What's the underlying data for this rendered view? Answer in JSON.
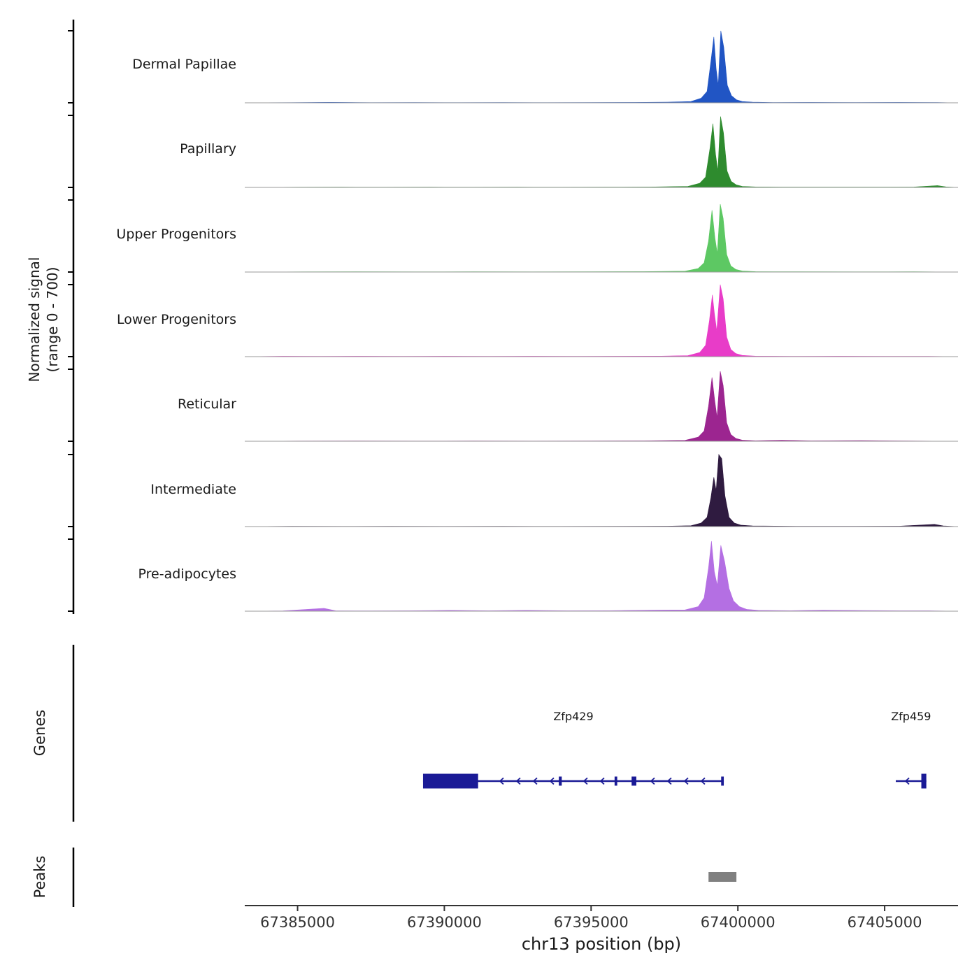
{
  "chart_data": {
    "type": "area",
    "title": "",
    "xlabel": "chr13 position (bp)",
    "ylabel_line1": "Normalized signal",
    "ylabel_line2": "(range 0 - 700)",
    "x_domain": [
      67383200,
      67407500
    ],
    "y_range_per_track": [
      0,
      700
    ],
    "x_ticks": [
      67385000,
      67390000,
      67395000,
      67400000,
      67405000
    ],
    "grid": false,
    "legend": "none",
    "tracks": [
      {
        "name": "Dermal Papillae",
        "color": "#2155c4",
        "profile": [
          [
            67383200,
            0
          ],
          [
            67384800,
            2
          ],
          [
            67386100,
            5
          ],
          [
            67387500,
            2
          ],
          [
            67389000,
            3
          ],
          [
            67390500,
            2
          ],
          [
            67392000,
            3
          ],
          [
            67393500,
            2
          ],
          [
            67395000,
            3
          ],
          [
            67396500,
            4
          ],
          [
            67397600,
            6
          ],
          [
            67398400,
            12
          ],
          [
            67398750,
            45
          ],
          [
            67398950,
            110
          ],
          [
            67399080,
            400
          ],
          [
            67399180,
            640
          ],
          [
            67399260,
            330
          ],
          [
            67399330,
            170
          ],
          [
            67399420,
            700
          ],
          [
            67399520,
            540
          ],
          [
            67399640,
            170
          ],
          [
            67399780,
            70
          ],
          [
            67399950,
            30
          ],
          [
            67400150,
            12
          ],
          [
            67400500,
            6
          ],
          [
            67401200,
            3
          ],
          [
            67402500,
            4
          ],
          [
            67404000,
            3
          ],
          [
            67405500,
            4
          ],
          [
            67406800,
            3
          ],
          [
            67407500,
            0
          ]
        ]
      },
      {
        "name": "Papillary",
        "color": "#2e8b2e",
        "profile": [
          [
            67383200,
            0
          ],
          [
            67385000,
            2
          ],
          [
            67386500,
            3
          ],
          [
            67388000,
            2
          ],
          [
            67389500,
            3
          ],
          [
            67391000,
            2
          ],
          [
            67392500,
            3
          ],
          [
            67394000,
            2
          ],
          [
            67395500,
            3
          ],
          [
            67397000,
            4
          ],
          [
            67398300,
            10
          ],
          [
            67398700,
            40
          ],
          [
            67398900,
            100
          ],
          [
            67399050,
            380
          ],
          [
            67399150,
            620
          ],
          [
            67399240,
            320
          ],
          [
            67399320,
            160
          ],
          [
            67399410,
            690
          ],
          [
            67399510,
            530
          ],
          [
            67399630,
            160
          ],
          [
            67399770,
            60
          ],
          [
            67399940,
            25
          ],
          [
            67400150,
            10
          ],
          [
            67400600,
            5
          ],
          [
            67401500,
            3
          ],
          [
            67403000,
            3
          ],
          [
            67404500,
            3
          ],
          [
            67406000,
            4
          ],
          [
            67406800,
            18
          ],
          [
            67407100,
            5
          ],
          [
            67407500,
            0
          ]
        ]
      },
      {
        "name": "Upper Progenitors",
        "color": "#5dc863",
        "profile": [
          [
            67383200,
            0
          ],
          [
            67385200,
            2
          ],
          [
            67387000,
            3
          ],
          [
            67389000,
            2
          ],
          [
            67391000,
            3
          ],
          [
            67393000,
            2
          ],
          [
            67395000,
            3
          ],
          [
            67396800,
            4
          ],
          [
            67398200,
            8
          ],
          [
            67398650,
            35
          ],
          [
            67398850,
            90
          ],
          [
            67399000,
            300
          ],
          [
            67399120,
            600
          ],
          [
            67399220,
            330
          ],
          [
            67399300,
            180
          ],
          [
            67399400,
            660
          ],
          [
            67399500,
            520
          ],
          [
            67399620,
            170
          ],
          [
            67399760,
            60
          ],
          [
            67399930,
            25
          ],
          [
            67400150,
            10
          ],
          [
            67400600,
            4
          ],
          [
            67402000,
            3
          ],
          [
            67404000,
            2
          ],
          [
            67406000,
            3
          ],
          [
            67407500,
            0
          ]
        ]
      },
      {
        "name": "Lower Progenitors",
        "color": "#e83cc8",
        "profile": [
          [
            67383200,
            0
          ],
          [
            67384500,
            4
          ],
          [
            67385800,
            3
          ],
          [
            67387200,
            4
          ],
          [
            67388600,
            3
          ],
          [
            67390000,
            4
          ],
          [
            67391500,
            3
          ],
          [
            67393000,
            4
          ],
          [
            67394500,
            3
          ],
          [
            67396000,
            4
          ],
          [
            67397400,
            5
          ],
          [
            67398300,
            10
          ],
          [
            67398700,
            40
          ],
          [
            67398900,
            110
          ],
          [
            67399030,
            350
          ],
          [
            67399130,
            600
          ],
          [
            67399200,
            420
          ],
          [
            67399280,
            250
          ],
          [
            67399400,
            700
          ],
          [
            67399500,
            560
          ],
          [
            67399620,
            190
          ],
          [
            67399760,
            70
          ],
          [
            67399930,
            30
          ],
          [
            67400150,
            12
          ],
          [
            67400600,
            5
          ],
          [
            67401800,
            3
          ],
          [
            67403500,
            4
          ],
          [
            67405000,
            3
          ],
          [
            67406500,
            3
          ],
          [
            67407500,
            0
          ]
        ]
      },
      {
        "name": "Reticular",
        "color": "#9c2590",
        "profile": [
          [
            67383200,
            0
          ],
          [
            67385000,
            2
          ],
          [
            67387000,
            3
          ],
          [
            67389000,
            2
          ],
          [
            67391000,
            3
          ],
          [
            67393000,
            2
          ],
          [
            67395000,
            3
          ],
          [
            67396800,
            4
          ],
          [
            67398200,
            9
          ],
          [
            67398650,
            40
          ],
          [
            67398850,
            100
          ],
          [
            67399000,
            340
          ],
          [
            67399120,
            620
          ],
          [
            67399210,
            400
          ],
          [
            67399290,
            230
          ],
          [
            67399400,
            680
          ],
          [
            67399500,
            540
          ],
          [
            67399620,
            180
          ],
          [
            67399760,
            65
          ],
          [
            67399930,
            28
          ],
          [
            67400150,
            11
          ],
          [
            67400600,
            5
          ],
          [
            67401500,
            10
          ],
          [
            67402500,
            4
          ],
          [
            67404200,
            6
          ],
          [
            67405800,
            3
          ],
          [
            67407500,
            0
          ]
        ]
      },
      {
        "name": "Intermediate",
        "color": "#2f1b40",
        "profile": [
          [
            67383200,
            0
          ],
          [
            67384800,
            3
          ],
          [
            67386500,
            2
          ],
          [
            67388200,
            3
          ],
          [
            67390000,
            2
          ],
          [
            67392000,
            3
          ],
          [
            67394000,
            2
          ],
          [
            67396000,
            3
          ],
          [
            67397600,
            4
          ],
          [
            67398400,
            8
          ],
          [
            67398750,
            35
          ],
          [
            67398950,
            90
          ],
          [
            67399080,
            280
          ],
          [
            67399180,
            480
          ],
          [
            67399260,
            350
          ],
          [
            67399350,
            700
          ],
          [
            67399450,
            660
          ],
          [
            67399560,
            300
          ],
          [
            67399700,
            90
          ],
          [
            67399880,
            35
          ],
          [
            67400100,
            14
          ],
          [
            67400500,
            6
          ],
          [
            67402000,
            3
          ],
          [
            67404000,
            3
          ],
          [
            67405500,
            4
          ],
          [
            67406700,
            22
          ],
          [
            67407000,
            6
          ],
          [
            67407500,
            0
          ]
        ]
      },
      {
        "name": "Pre-adipocytes",
        "color": "#b46fe3",
        "profile": [
          [
            67383200,
            0
          ],
          [
            67384500,
            3
          ],
          [
            67385900,
            28
          ],
          [
            67386300,
            4
          ],
          [
            67387500,
            3
          ],
          [
            67388800,
            4
          ],
          [
            67390200,
            8
          ],
          [
            67391500,
            4
          ],
          [
            67392800,
            8
          ],
          [
            67394200,
            4
          ],
          [
            67395600,
            5
          ],
          [
            67397000,
            10
          ],
          [
            67398200,
            12
          ],
          [
            67398650,
            45
          ],
          [
            67398850,
            130
          ],
          [
            67399000,
            420
          ],
          [
            67399100,
            680
          ],
          [
            67399200,
            380
          ],
          [
            67399300,
            250
          ],
          [
            67399420,
            640
          ],
          [
            67399550,
            480
          ],
          [
            67399700,
            220
          ],
          [
            67399850,
            100
          ],
          [
            67400050,
            45
          ],
          [
            67400300,
            18
          ],
          [
            67400700,
            8
          ],
          [
            67401800,
            5
          ],
          [
            67402900,
            10
          ],
          [
            67404300,
            6
          ],
          [
            67405500,
            4
          ],
          [
            67406500,
            4
          ],
          [
            67407500,
            0
          ]
        ]
      }
    ],
    "genes": {
      "label": "Genes",
      "color": "#1a1a96",
      "items": [
        {
          "name": "Zfp429",
          "strand": "-",
          "start": 67389274,
          "end": 67399520,
          "exons": [
            {
              "start": 67389274,
              "end": 67391150,
              "type": "tall"
            },
            {
              "start": 67393900,
              "end": 67394000,
              "type": "short"
            },
            {
              "start": 67395800,
              "end": 67395890,
              "type": "short"
            },
            {
              "start": 67396380,
              "end": 67396540,
              "type": "short"
            },
            {
              "start": 67399430,
              "end": 67399520,
              "type": "short"
            }
          ]
        },
        {
          "name": "Zfp459",
          "strand": "-",
          "start": 67405380,
          "end": 67406420,
          "exons": [
            {
              "start": 67406250,
              "end": 67406420,
              "type": "tall"
            }
          ]
        }
      ]
    },
    "peaks": {
      "label": "Peaks",
      "color": "#808080",
      "items": [
        {
          "start": 67399000,
          "end": 67399950
        }
      ]
    }
  }
}
